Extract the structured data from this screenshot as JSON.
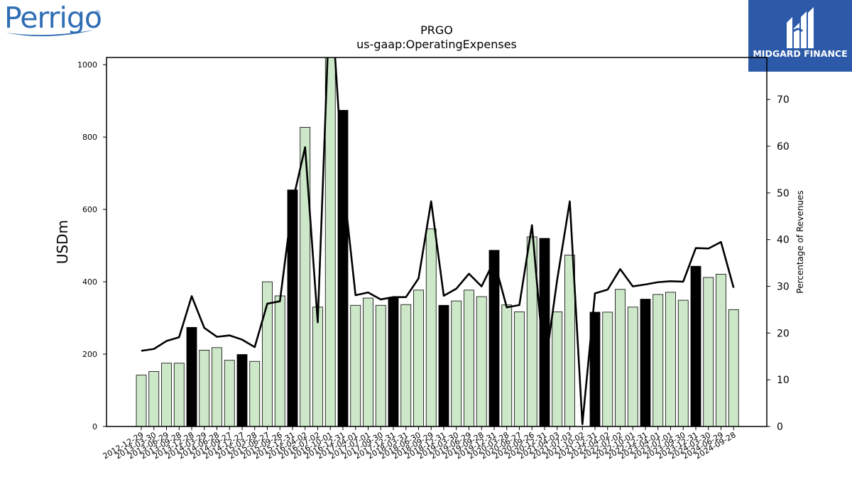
{
  "brand": {
    "name": "Perrigo",
    "reg": "®"
  },
  "watermark": {
    "name": "MIDGARD FINANCE"
  },
  "chart_data": {
    "type": "bar",
    "title": "PRGO",
    "subtitle": "us-gaap:OperatingExpenses",
    "ylabel": "USDm",
    "y2label": "Percentage of Revenues",
    "ylim": [
      0,
      1020
    ],
    "y2lim": [
      0,
      79
    ],
    "yticks": [
      0,
      200,
      400,
      600,
      800,
      1000
    ],
    "y2ticks": [
      0,
      10,
      20,
      30,
      40,
      50,
      60,
      70
    ],
    "colors": {
      "bar": "#cce8c8",
      "highlight": "#000000",
      "line": "#000000"
    },
    "categories": [
      "2012-12-29",
      "2013-03-30",
      "2013-06-29",
      "2013-09-28",
      "2013-12-28",
      "2014-03-29",
      "2014-06-28",
      "2014-09-27",
      "2014-12-27",
      "2015-03-28",
      "2015-06-27",
      "2015-09-26",
      "2015-12-31",
      "2016-04-02",
      "2016-07-02",
      "2016-10-01",
      "2016-12-31",
      "2017-04-01",
      "2017-07-01",
      "2017-09-30",
      "2017-12-31",
      "2018-03-31",
      "2018-06-30",
      "2018-09-29",
      "2018-12-31",
      "2019-03-30",
      "2019-06-29",
      "2019-09-28",
      "2019-12-31",
      "2020-03-28",
      "2020-06-27",
      "2020-09-26",
      "2020-12-31",
      "2021-04-03",
      "2021-07-03",
      "2021-10-02",
      "2021-12-31",
      "2022-04-02",
      "2022-07-02",
      "2022-10-01",
      "2022-12-31",
      "2023-04-01",
      "2023-07-01",
      "2023-09-30",
      "2023-12-31",
      "2024-03-30",
      "2024-06-29",
      "2024-09-28"
    ],
    "values": [
      142,
      152,
      175,
      175,
      274,
      211,
      218,
      183,
      199,
      180,
      400,
      361,
      654,
      827,
      330,
      1020,
      874,
      335,
      355,
      335,
      357,
      337,
      377,
      546,
      335,
      347,
      377,
      359,
      487,
      336,
      317,
      524,
      520,
      317,
      474,
      0,
      316,
      316,
      379,
      330,
      352,
      365,
      371,
      349,
      443,
      412,
      421,
      323
    ],
    "highlight": [
      false,
      false,
      false,
      false,
      true,
      false,
      false,
      false,
      true,
      false,
      false,
      false,
      true,
      false,
      false,
      false,
      true,
      false,
      false,
      false,
      true,
      false,
      false,
      false,
      true,
      false,
      false,
      false,
      true,
      false,
      false,
      false,
      true,
      false,
      false,
      false,
      true,
      false,
      false,
      false,
      true,
      false,
      false,
      false,
      true,
      false,
      false,
      false
    ],
    "pct_revenue": [
      16.2,
      16.6,
      18.3,
      19.1,
      27.9,
      21.1,
      19.2,
      19.5,
      18.6,
      17.0,
      26.3,
      26.8,
      48.0,
      59.8,
      22.3,
      95.0,
      53.0,
      28.1,
      28.7,
      27.2,
      27.7,
      27.7,
      31.7,
      48.2,
      28.0,
      29.5,
      32.7,
      30.0,
      35.5,
      25.5,
      26.0,
      43.1,
      12.0,
      31.4,
      48.2,
      0.5,
      28.5,
      29.3,
      33.7,
      30.0,
      30.4,
      30.9,
      31.1,
      31.0,
      38.2,
      38.1,
      39.5,
      29.7
    ],
    "grid": false
  }
}
